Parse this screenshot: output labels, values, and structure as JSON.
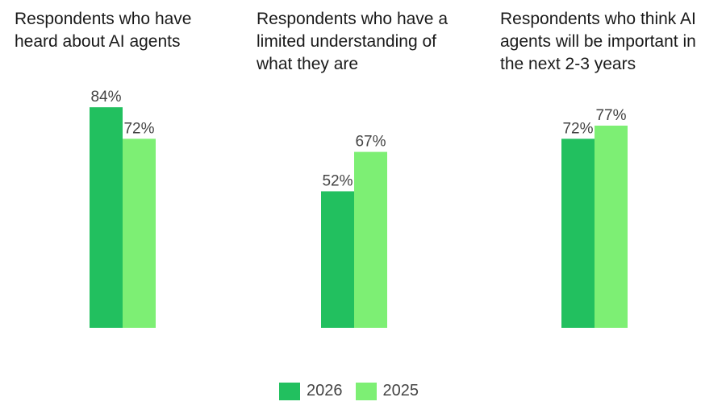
{
  "chart_data": {
    "type": "bar",
    "categories": [
      "Respondents who have heard about AI agents",
      "Respondents who have a limited understanding of what they are",
      "Respondents who think AI agents will be important in the next 2-3 years"
    ],
    "series": [
      {
        "name": "2026",
        "values": [
          84,
          52,
          72
        ],
        "labels": [
          "84%",
          "52%",
          "72%"
        ],
        "color": "#22c05f"
      },
      {
        "name": "2025",
        "values": [
          72,
          67,
          77
        ],
        "labels": [
          "72%",
          "67%",
          "77%"
        ],
        "color": "#7def74"
      }
    ],
    "ylim": [
      0,
      100
    ],
    "grid": false,
    "legend": "bottom-center"
  }
}
